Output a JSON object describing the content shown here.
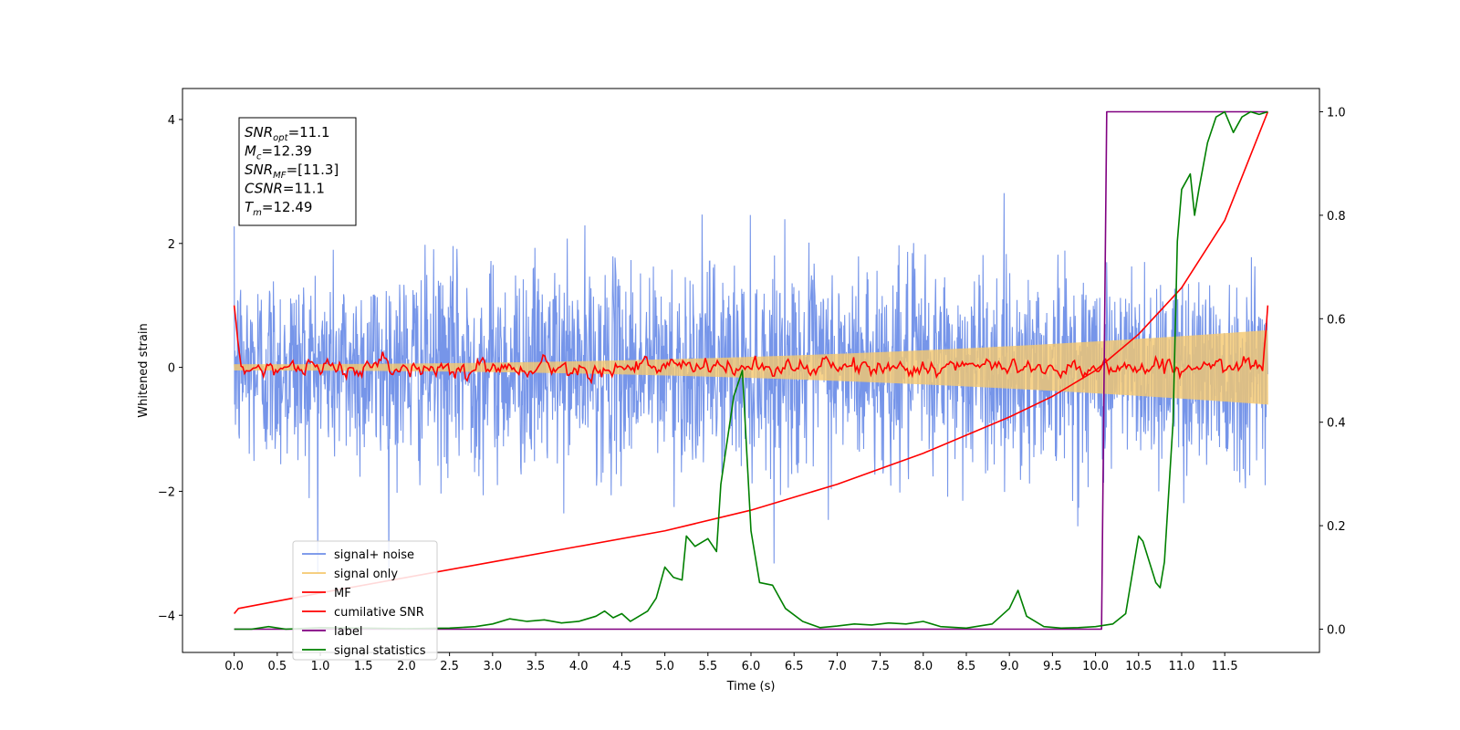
{
  "chart_data": {
    "type": "line",
    "xlabel": "Time (s)",
    "ylabel": "Whitened strain",
    "xlim": [
      -0.6,
      12.6
    ],
    "ylim": [
      -4.6,
      4.5
    ],
    "y2lim": [
      -0.045,
      1.045
    ],
    "x_ticks": [
      "0.0",
      "0.5",
      "1.0",
      "1.5",
      "2.0",
      "2.5",
      "3.0",
      "3.5",
      "4.0",
      "4.5",
      "5.0",
      "5.5",
      "6.0",
      "6.5",
      "7.0",
      "7.5",
      "8.0",
      "8.5",
      "9.0",
      "9.5",
      "10.0",
      "10.5",
      "11.0",
      "11.5"
    ],
    "y_ticks": [
      "4",
      "2",
      "0",
      "−2",
      "−4"
    ],
    "y2_ticks": [
      "1.0",
      "0.8",
      "0.6",
      "0.4",
      "0.2",
      "0.0"
    ],
    "stats": [
      {
        "var": "SNR",
        "sub": "opt",
        "value": "=11.1"
      },
      {
        "var": "M",
        "sub": "c",
        "value": "=12.39"
      },
      {
        "var": "SNR",
        "sub": "MF",
        "value": "=[11.3]"
      },
      {
        "var": "CSNR",
        "sub": "",
        "value": "=11.1"
      },
      {
        "var": "T",
        "sub": "m",
        "value": "=12.49"
      }
    ],
    "legend_position": "lower-left",
    "series": [
      {
        "name": "signal+ noise",
        "color": "#6f8fe8",
        "axis": "left",
        "kind": "noise",
        "sigma": 0.82,
        "t_start": 0.0,
        "t_end": 12.0
      },
      {
        "name": "signal only",
        "color": "#f5c86e",
        "axis": "left",
        "kind": "chirp",
        "amp_start": 0.05,
        "amp_end": 0.6,
        "t_start": 0.0,
        "t_end": 12.0
      },
      {
        "name": "MF",
        "color": "#ff0000",
        "axis": "left",
        "kind": "mf",
        "start_value": 1.0,
        "end_value": 1.0,
        "noise_sigma": 0.06
      },
      {
        "name": "cumilative SNR",
        "color": "#ff0000",
        "axis": "right",
        "x": [
          0.0,
          0.05,
          1.0,
          2.0,
          3.0,
          4.0,
          5.0,
          6.0,
          7.0,
          8.0,
          8.5,
          9.0,
          9.5,
          10.0,
          10.5,
          11.0,
          11.5,
          12.0
        ],
        "y": [
          0.03,
          0.04,
          0.07,
          0.1,
          0.13,
          0.16,
          0.19,
          0.23,
          0.28,
          0.34,
          0.375,
          0.41,
          0.45,
          0.5,
          0.57,
          0.66,
          0.79,
          1.0
        ]
      },
      {
        "name": "label",
        "color": "#800080",
        "axis": "right",
        "x": [
          0.0,
          10.07,
          10.13,
          12.0
        ],
        "y": [
          0.0,
          0.0,
          1.0,
          1.0
        ]
      },
      {
        "name": "signal statistics",
        "color": "#008000",
        "axis": "right",
        "x": [
          0.0,
          0.2,
          0.4,
          0.6,
          1.0,
          1.5,
          2.0,
          2.5,
          2.8,
          3.0,
          3.2,
          3.4,
          3.6,
          3.8,
          4.0,
          4.2,
          4.3,
          4.4,
          4.5,
          4.6,
          4.7,
          4.8,
          4.9,
          5.0,
          5.1,
          5.2,
          5.25,
          5.35,
          5.5,
          5.6,
          5.65,
          5.8,
          5.9,
          6.0,
          6.1,
          6.25,
          6.4,
          6.6,
          6.8,
          7.0,
          7.2,
          7.4,
          7.6,
          7.8,
          8.0,
          8.2,
          8.5,
          8.8,
          9.0,
          9.1,
          9.2,
          9.4,
          9.6,
          9.8,
          10.0,
          10.2,
          10.35,
          10.5,
          10.55,
          10.7,
          10.75,
          10.8,
          10.9,
          10.95,
          11.0,
          11.1,
          11.15,
          11.2,
          11.3,
          11.4,
          11.5,
          11.6,
          11.7,
          11.8,
          11.9,
          12.0
        ],
        "y": [
          0.0,
          0.0,
          0.005,
          0.0,
          0.003,
          0.002,
          0.001,
          0.002,
          0.005,
          0.01,
          0.02,
          0.015,
          0.018,
          0.012,
          0.015,
          0.025,
          0.035,
          0.022,
          0.03,
          0.015,
          0.025,
          0.035,
          0.06,
          0.12,
          0.1,
          0.095,
          0.18,
          0.16,
          0.175,
          0.15,
          0.28,
          0.45,
          0.5,
          0.19,
          0.09,
          0.085,
          0.04,
          0.015,
          0.003,
          0.006,
          0.01,
          0.008,
          0.012,
          0.01,
          0.015,
          0.005,
          0.002,
          0.01,
          0.04,
          0.075,
          0.025,
          0.005,
          0.002,
          0.003,
          0.005,
          0.01,
          0.03,
          0.18,
          0.17,
          0.09,
          0.08,
          0.13,
          0.4,
          0.75,
          0.85,
          0.88,
          0.8,
          0.85,
          0.94,
          0.99,
          1.0,
          0.96,
          0.99,
          1.0,
          0.995,
          1.0
        ]
      }
    ]
  }
}
